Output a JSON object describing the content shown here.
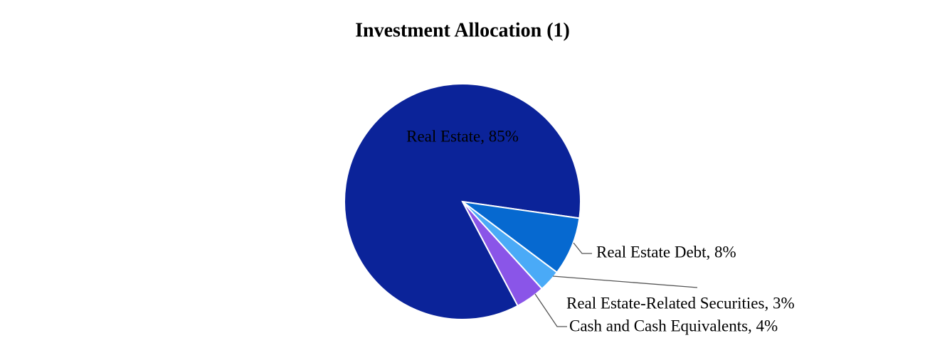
{
  "chart_data": {
    "type": "pie",
    "title": "Investment Allocation (1)",
    "values": [
      85,
      8,
      3,
      4
    ],
    "value_labels": [
      "Real Estate, 85%",
      "Real Estate Debt, 8%",
      "Real Estate-Related Securities, 3%",
      "Cash and Cash Equivalents, 4%"
    ],
    "colors": [
      "#0b2399",
      "#0669d0",
      "#4aaaf7",
      "#8a55e8"
    ]
  }
}
